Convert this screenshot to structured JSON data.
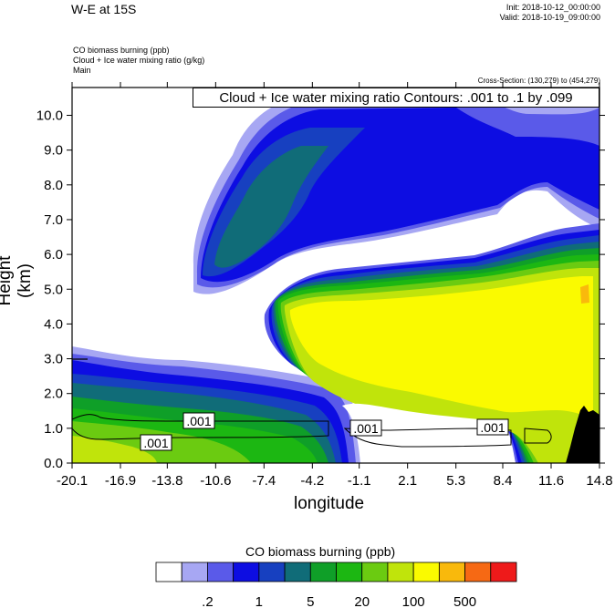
{
  "header": {
    "title": "W-E at 15S",
    "init": "Init: 2018-10-12_00:00:00",
    "valid": "Valid: 2018-10-19_09:00:00",
    "variables": [
      "CO biomass burning   (ppb)",
      "Cloud + Ice water mixing ratio   (g/kg)",
      "Main"
    ],
    "cross_section": "Cross-Section: (130,279) to (454,279)",
    "contour_info": "Cloud + Ice water mixing ratio Contours: .001 to .1 by .099"
  },
  "chart_data": {
    "type": "heatmap",
    "title": "W-E at 15S",
    "xlabel": "longitude",
    "ylabel": "Height (km)",
    "x_ticks": [
      "-20.1",
      "-16.9",
      "-13.8",
      "-10.6",
      "-7.4",
      "-4.2",
      "-1.1",
      "2.1",
      "5.3",
      "8.4",
      "11.6",
      "14.8"
    ],
    "y_ticks": [
      "0.0",
      "1.0",
      "2.0",
      "3.0",
      "4.0",
      "5.0",
      "6.0",
      "7.0",
      "8.0",
      "9.0",
      "10.0"
    ],
    "xlim": [
      -20.1,
      14.8
    ],
    "ylim": [
      0.0,
      10.8
    ],
    "contour_labels": [
      ".001",
      ".001",
      ".001",
      ".001"
    ],
    "colorbar": {
      "title": "CO biomass burning  (ppb)",
      "tick_labels": [
        ".2",
        "1",
        "5",
        "20",
        "100",
        "500"
      ],
      "colors": [
        "#ffffff",
        "#a7a7f3",
        "#5a5ae9",
        "#0d0de2",
        "#1740c0",
        "#106c78",
        "#0f9f28",
        "#1cb712",
        "#6bcb11",
        "#c0e40b",
        "#fafa00",
        "#f9b90c",
        "#f66914",
        "#ee1a1a"
      ]
    },
    "grid": false,
    "legend": "bottom colorbar"
  }
}
